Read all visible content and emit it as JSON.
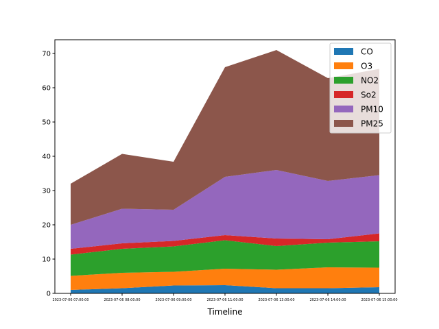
{
  "chart_data": {
    "type": "area",
    "stacked": true,
    "title": "",
    "xlabel": "Timeline",
    "ylabel": "",
    "x": [
      "2023-07-06 07:00:00",
      "2023-07-06 08:00:00",
      "2023-07-06 09:00:00",
      "2023-07-06 11:00:00",
      "2023-07-06 13:00:00",
      "2023-07-06 14:00:00",
      "2023-07-06 15:00:00"
    ],
    "ylim": [
      0,
      74
    ],
    "yticks": [
      0,
      10,
      20,
      30,
      40,
      50,
      60,
      70
    ],
    "grid": false,
    "legend": "top-right",
    "series": [
      {
        "name": "CO",
        "color": "#1f77b4",
        "values": [
          1.0,
          1.5,
          2.3,
          2.4,
          1.5,
          1.5,
          1.8
        ]
      },
      {
        "name": "O3",
        "color": "#ff7f0e",
        "values": [
          4.1,
          4.5,
          4.0,
          4.8,
          5.4,
          6.1,
          5.7
        ]
      },
      {
        "name": "NO2",
        "color": "#2ca02c",
        "values": [
          6.2,
          7.0,
          7.4,
          8.3,
          6.9,
          7.2,
          7.7
        ]
      },
      {
        "name": "So2",
        "color": "#d62728",
        "values": [
          1.7,
          1.6,
          1.6,
          1.5,
          2.2,
          1.0,
          2.3
        ]
      },
      {
        "name": "PM10",
        "color": "#9467bd",
        "values": [
          7.0,
          10.1,
          9.1,
          17.0,
          20.0,
          17.0,
          17.0
        ]
      },
      {
        "name": "PM25",
        "color": "#8c564b",
        "values": [
          12.0,
          16.0,
          14.0,
          32.0,
          35.0,
          30.0,
          31.0
        ]
      }
    ]
  }
}
